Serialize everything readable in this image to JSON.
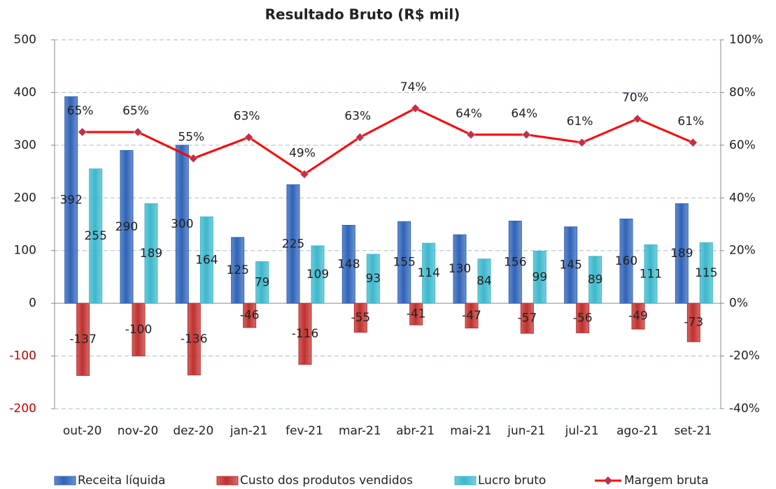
{
  "chart_data": {
    "type": "bar_line",
    "title": "Resultado Bruto (R$ mil)",
    "categories": [
      "out-20",
      "nov-20",
      "dez-20",
      "jan-21",
      "fev-21",
      "mar-21",
      "abr-21",
      "mai-21",
      "jun-21",
      "jul-21",
      "ago-21",
      "set-21"
    ],
    "series": [
      {
        "name": "Receita líquida",
        "type": "bar",
        "color": "#2f63b8",
        "values": [
          392,
          290,
          300,
          125,
          225,
          148,
          155,
          130,
          156,
          145,
          160,
          189
        ]
      },
      {
        "name": "Custo dos produtos vendidos",
        "type": "bar",
        "color": "#c0302e",
        "values": [
          -137,
          -100,
          -136,
          -46,
          -116,
          -55,
          -41,
          -47,
          -57,
          -56,
          -49,
          -73
        ]
      },
      {
        "name": "Lucro bruto",
        "type": "bar",
        "color": "#3cb8cc",
        "values": [
          255,
          189,
          164,
          79,
          109,
          93,
          114,
          84,
          99,
          89,
          111,
          115
        ]
      },
      {
        "name": "Margem bruta",
        "type": "line",
        "axis": "y2",
        "color": "#ff0000",
        "marker_color": "#c0304a",
        "values": [
          65,
          65,
          55,
          63,
          49,
          63,
          74,
          64,
          64,
          61,
          70,
          61
        ],
        "value_labels": [
          "65%",
          "65%",
          "55%",
          "63%",
          "49%",
          "63%",
          "74%",
          "64%",
          "64%",
          "61%",
          "70%",
          "61%"
        ]
      }
    ],
    "ylim": [
      -200,
      500
    ],
    "yticks": [
      -200,
      -100,
      0,
      100,
      200,
      300,
      400,
      500
    ],
    "y2lim": [
      -40,
      100
    ],
    "y2ticks": [
      {
        "value": -40,
        "label": "-40%"
      },
      {
        "value": -20,
        "label": "-20%"
      },
      {
        "value": 0,
        "label": "0%"
      },
      {
        "value": 20,
        "label": "20%"
      },
      {
        "value": 40,
        "label": "40%"
      },
      {
        "value": 60,
        "label": "60%"
      },
      {
        "value": 80,
        "label": "80%"
      },
      {
        "value": 100,
        "label": "100%"
      }
    ],
    "grid": true,
    "legend": "bottom"
  }
}
